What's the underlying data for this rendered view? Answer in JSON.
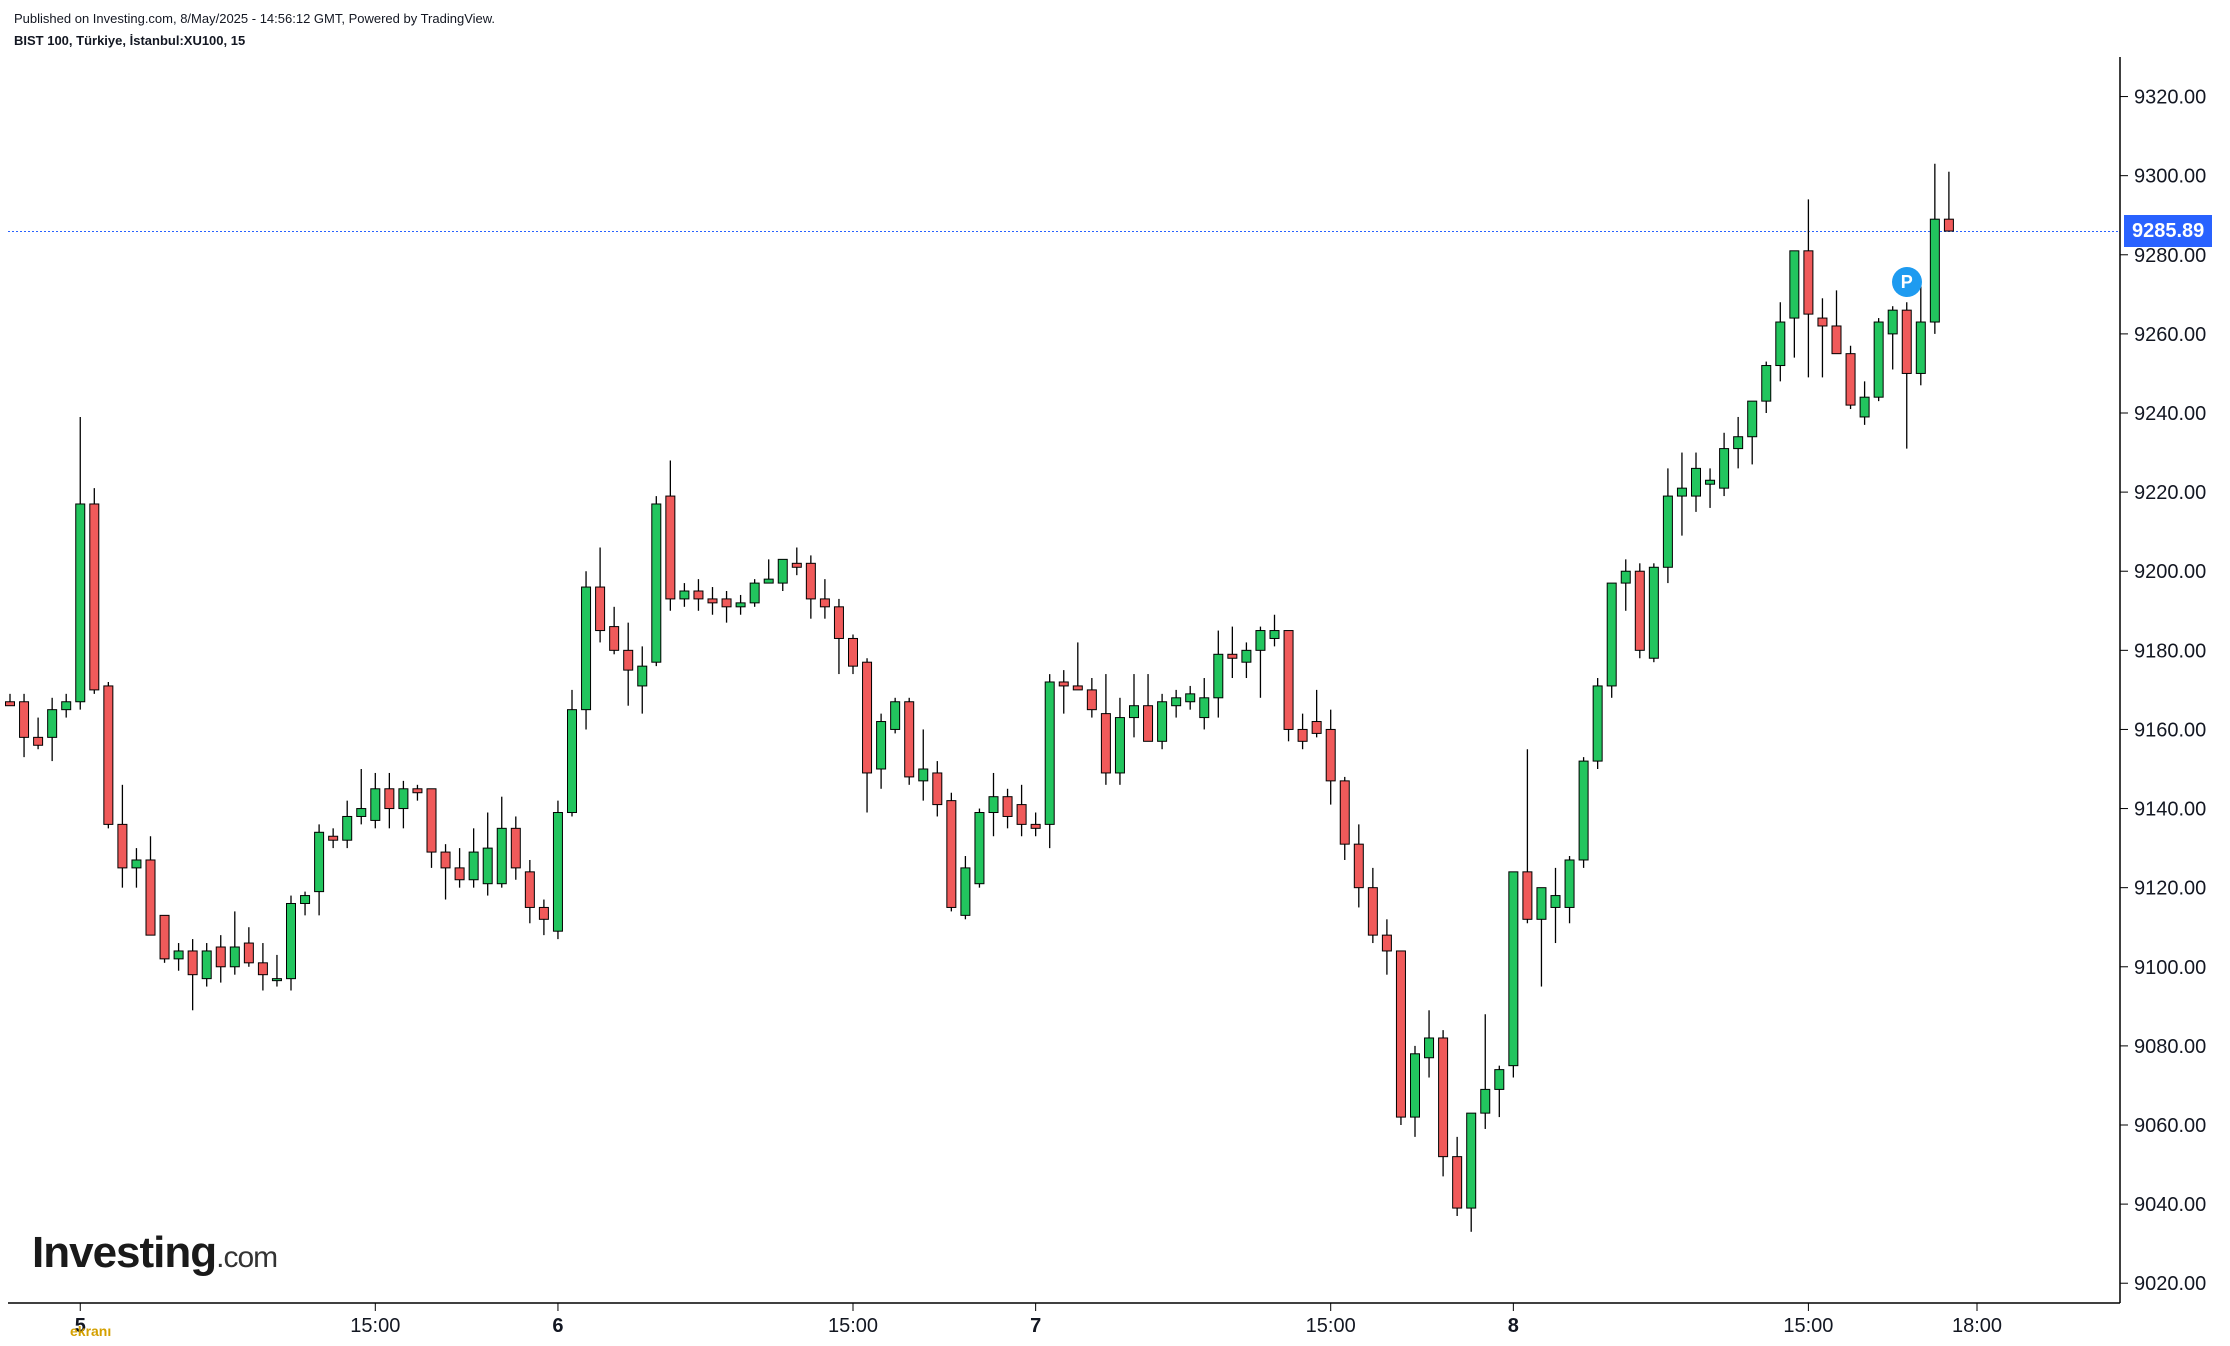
{
  "header": {
    "published": "Published on Investing.com, 8/May/2025 - 14:56:12 GMT, Powered by TradingView.",
    "symbol": "BIST 100, Türkiye, İstanbul:XU100, 15"
  },
  "logo": {
    "brand": "Investing",
    "domain": ".com"
  },
  "watermark": "ekranı",
  "marker": {
    "label": "P",
    "color": "#1e9bf0"
  },
  "last_price": {
    "label": "9285.89",
    "value": 9285.89,
    "color": "#2962ff"
  },
  "colors": {
    "up": "#089981",
    "up_fill": "#22c55e",
    "down": "#f23645",
    "down_fill": "#f05a5a",
    "wick": "#000000"
  },
  "chart_data": {
    "type": "candlestick",
    "ylim": [
      9015,
      9330
    ],
    "y_ticks": [
      9020,
      9040,
      9060,
      9080,
      9100,
      9120,
      9140,
      9160,
      9180,
      9200,
      9220,
      9240,
      9260,
      9280,
      9300,
      9320
    ],
    "y_tick_labels": [
      "9020.00",
      "9040.00",
      "9060.00",
      "9080.00",
      "9100.00",
      "9120.00",
      "9140.00",
      "9160.00",
      "9180.00",
      "9200.00",
      "9220.00",
      "9240.00",
      "9260.00",
      "9280.00",
      "9300.00",
      "9320.00"
    ],
    "x_ticks": [
      {
        "label": "5",
        "bar": 5,
        "bold": true
      },
      {
        "label": "15:00",
        "bar": 26,
        "bold": false
      },
      {
        "label": "6",
        "bar": 39,
        "bold": true
      },
      {
        "label": "15:00",
        "bar": 60,
        "bold": false
      },
      {
        "label": "7",
        "bar": 73,
        "bold": true
      },
      {
        "label": "15:00",
        "bar": 94,
        "bold": false
      },
      {
        "label": "8",
        "bar": 107,
        "bold": true
      },
      {
        "label": "15:00",
        "bar": 128,
        "bold": false
      },
      {
        "label": "18:00",
        "bar": 140,
        "bold": false
      }
    ],
    "marker_bar": 135,
    "marker_price": 9273,
    "candles": [
      [
        9167,
        9169,
        9166,
        9166
      ],
      [
        9167,
        9169,
        9153,
        9158
      ],
      [
        9158,
        9163,
        9155,
        9156
      ],
      [
        9158,
        9168,
        9152,
        9165
      ],
      [
        9165,
        9169,
        9163,
        9167
      ],
      [
        9167,
        9239,
        9165,
        9217
      ],
      [
        9217,
        9221,
        9169,
        9170
      ],
      [
        9171,
        9172,
        9135,
        9136
      ],
      [
        9136,
        9146,
        9120,
        9125
      ],
      [
        9125,
        9130,
        9120,
        9127
      ],
      [
        9127,
        9133,
        9108,
        9108
      ],
      [
        9113,
        9113,
        9101,
        9102
      ],
      [
        9102,
        9106,
        9099,
        9104
      ],
      [
        9104,
        9107,
        9089,
        9098
      ],
      [
        9097,
        9106,
        9095,
        9104
      ],
      [
        9105,
        9108,
        9096,
        9100
      ],
      [
        9100,
        9114,
        9098,
        9105
      ],
      [
        9106,
        9110,
        9100,
        9101
      ],
      [
        9101,
        9106,
        9094,
        9098
      ],
      [
        9097,
        9103,
        9095,
        9097
      ],
      [
        9097,
        9118,
        9094,
        9116
      ],
      [
        9116,
        9119,
        9113,
        9118
      ],
      [
        9119,
        9136,
        9113,
        9134
      ],
      [
        9133,
        9135,
        9130,
        9132
      ],
      [
        9132,
        9142,
        9130,
        9138
      ],
      [
        9138,
        9150,
        9136,
        9140
      ],
      [
        9137,
        9149,
        9135,
        9145
      ],
      [
        9145,
        9149,
        9135,
        9140
      ],
      [
        9140,
        9147,
        9135,
        9145
      ],
      [
        9145,
        9146,
        9142,
        9144
      ],
      [
        9145,
        9145,
        9125,
        9129
      ],
      [
        9129,
        9131,
        9117,
        9125
      ],
      [
        9125,
        9130,
        9120,
        9122
      ],
      [
        9122,
        9135,
        9120,
        9129
      ],
      [
        9121,
        9139,
        9118,
        9130
      ],
      [
        9121,
        9143,
        9120,
        9135
      ],
      [
        9135,
        9138,
        9122,
        9125
      ],
      [
        9124,
        9127,
        9111,
        9115
      ],
      [
        9115,
        9117,
        9108,
        9112
      ],
      [
        9109,
        9142,
        9107,
        9139
      ],
      [
        9139,
        9170,
        9138,
        9165
      ],
      [
        9165,
        9200,
        9160,
        9196
      ],
      [
        9196,
        9206,
        9182,
        9185
      ],
      [
        9186,
        9191,
        9179,
        9180
      ],
      [
        9180,
        9187,
        9166,
        9175
      ],
      [
        9171,
        9181,
        9164,
        9176
      ],
      [
        9177,
        9219,
        9176,
        9217
      ],
      [
        9219,
        9228,
        9190,
        9193
      ],
      [
        9193,
        9197,
        9191,
        9195
      ],
      [
        9195,
        9198,
        9190,
        9193
      ],
      [
        9193,
        9196,
        9189,
        9192
      ],
      [
        9193,
        9195,
        9187,
        9191
      ],
      [
        9191,
        9194,
        9189,
        9192
      ],
      [
        9192,
        9198,
        9191,
        9197
      ],
      [
        9197,
        9203,
        9197,
        9198
      ],
      [
        9197,
        9203,
        9195,
        9203
      ],
      [
        9202,
        9206,
        9199,
        9201
      ],
      [
        9202,
        9204,
        9188,
        9193
      ],
      [
        9193,
        9198,
        9188,
        9191
      ],
      [
        9191,
        9193,
        9174,
        9183
      ],
      [
        9183,
        9184,
        9174,
        9176
      ],
      [
        9177,
        9178,
        9139,
        9149
      ],
      [
        9150,
        9164,
        9145,
        9162
      ],
      [
        9160,
        9168,
        9159,
        9167
      ],
      [
        9167,
        9168,
        9146,
        9148
      ],
      [
        9147,
        9160,
        9142,
        9150
      ],
      [
        9149,
        9152,
        9138,
        9141
      ],
      [
        9142,
        9144,
        9114,
        9115
      ],
      [
        9113,
        9128,
        9112,
        9125
      ],
      [
        9121,
        9140,
        9120,
        9139
      ],
      [
        9139,
        9149,
        9133,
        9143
      ],
      [
        9143,
        9145,
        9135,
        9138
      ],
      [
        9141,
        9146,
        9133,
        9136
      ],
      [
        9136,
        9139,
        9133,
        9135
      ],
      [
        9136,
        9174,
        9130,
        9172
      ],
      [
        9172,
        9175,
        9164,
        9171
      ],
      [
        9171,
        9182,
        9170,
        9170
      ],
      [
        9170,
        9173,
        9163,
        9165
      ],
      [
        9164,
        9174,
        9146,
        9149
      ],
      [
        9149,
        9168,
        9146,
        9163
      ],
      [
        9163,
        9174,
        9158,
        9166
      ],
      [
        9166,
        9174,
        9160,
        9157
      ],
      [
        9157,
        9169,
        9155,
        9167
      ],
      [
        9166,
        9170,
        9163,
        9168
      ],
      [
        9167,
        9171,
        9165,
        9169
      ],
      [
        9163,
        9173,
        9160,
        9168
      ],
      [
        9168,
        9185,
        9163,
        9179
      ],
      [
        9179,
        9186,
        9173,
        9178
      ],
      [
        9177,
        9182,
        9173,
        9180
      ],
      [
        9180,
        9186,
        9168,
        9185
      ],
      [
        9183,
        9189,
        9181,
        9185
      ],
      [
        9185,
        9185,
        9157,
        9160
      ],
      [
        9160,
        9164,
        9155,
        9157
      ],
      [
        9162,
        9170,
        9158,
        9159
      ],
      [
        9160,
        9165,
        9141,
        9147
      ],
      [
        9147,
        9148,
        9127,
        9131
      ],
      [
        9131,
        9136,
        9115,
        9120
      ],
      [
        9120,
        9125,
        9106,
        9108
      ],
      [
        9108,
        9112,
        9098,
        9104
      ],
      [
        9104,
        9104,
        9060,
        9062
      ],
      [
        9062,
        9080,
        9057,
        9078
      ],
      [
        9077,
        9089,
        9072,
        9082
      ],
      [
        9082,
        9084,
        9047,
        9052
      ],
      [
        9052,
        9057,
        9037,
        9039
      ],
      [
        9039,
        9062,
        9033,
        9063
      ],
      [
        9063,
        9088,
        9059,
        9069
      ],
      [
        9069,
        9075,
        9062,
        9074
      ],
      [
        9075,
        9124,
        9072,
        9124
      ],
      [
        9124,
        9155,
        9111,
        9112
      ],
      [
        9112,
        9120,
        9095,
        9120
      ],
      [
        9115,
        9125,
        9106,
        9118
      ],
      [
        9115,
        9128,
        9111,
        9127
      ],
      [
        9127,
        9153,
        9125,
        9152
      ],
      [
        9152,
        9173,
        9150,
        9171
      ],
      [
        9171,
        9197,
        9168,
        9197
      ],
      [
        9197,
        9203,
        9190,
        9200
      ],
      [
        9200,
        9202,
        9178,
        9180
      ],
      [
        9178,
        9202,
        9177,
        9201
      ],
      [
        9201,
        9226,
        9197,
        9219
      ],
      [
        9219,
        9230,
        9209,
        9221
      ],
      [
        9219,
        9230,
        9215,
        9226
      ],
      [
        9222,
        9226,
        9216,
        9223
      ],
      [
        9221,
        9235,
        9219,
        9231
      ],
      [
        9231,
        9239,
        9226,
        9234
      ],
      [
        9234,
        9243,
        9227,
        9243
      ],
      [
        9243,
        9253,
        9240,
        9252
      ],
      [
        9252,
        9268,
        9248,
        9263
      ],
      [
        9264,
        9281,
        9254,
        9281
      ],
      [
        9281,
        9294,
        9249,
        9265
      ],
      [
        9264,
        9269,
        9249,
        9262
      ],
      [
        9262,
        9271,
        9256,
        9255
      ],
      [
        9255,
        9257,
        9241,
        9242
      ],
      [
        9239,
        9248,
        9237,
        9244
      ],
      [
        9244,
        9264,
        9243,
        9263
      ],
      [
        9260,
        9267,
        9251,
        9266
      ],
      [
        9266,
        9268,
        9231,
        9250
      ],
      [
        9250,
        9272,
        9247,
        9263
      ],
      [
        9263,
        9303,
        9260,
        9289
      ],
      [
        9289,
        9301,
        9286,
        9286
      ]
    ]
  }
}
